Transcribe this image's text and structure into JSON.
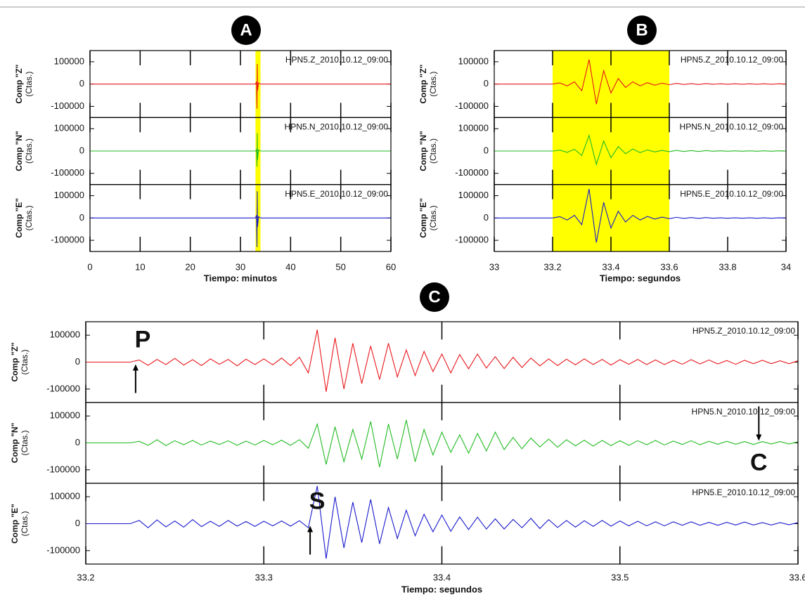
{
  "chart_data": [
    {
      "type": "line",
      "label": "A",
      "xlabel": "Tiempo: minutos",
      "xlim": [
        0,
        60
      ],
      "xticks": [
        0,
        10,
        20,
        30,
        40,
        50,
        60
      ],
      "highlight": [
        33,
        34
      ],
      "highlight_color": "#ffff00",
      "x": [
        0,
        10,
        20,
        30,
        33,
        33.2,
        33.3,
        33.35,
        33.4,
        33.6,
        34,
        40,
        50,
        60
      ],
      "panels": [
        {
          "ylabel": "Comp \"Z\"",
          "yunit": "(Ctas.)",
          "annotation": "HPN5.Z_2010.10.12_09:00",
          "ylim": [
            -150000,
            150000
          ],
          "yticks": [
            100000,
            0,
            -100000
          ],
          "series": [
            {
              "color": "#e8161b",
              "values": [
                0,
                0,
                0,
                0,
                0,
                10000,
                -110000,
                90000,
                -30000,
                5000,
                0,
                0,
                0,
                0
              ]
            }
          ]
        },
        {
          "ylabel": "Comp \"N\"",
          "yunit": "(Ctas.)",
          "annotation": "HPN5.N_2010.10.12_09:00",
          "ylim": [
            -150000,
            150000
          ],
          "yticks": [
            100000,
            0,
            -100000
          ],
          "series": [
            {
              "color": "#22bb22",
              "values": [
                0,
                0,
                0,
                0,
                0,
                6000,
                -70000,
                80000,
                -40000,
                5000,
                0,
                0,
                0,
                0
              ]
            }
          ]
        },
        {
          "ylabel": "Comp \"E\"",
          "yunit": "(Ctas.)",
          "annotation": "HPN5.E_2010.10.12_09:00",
          "ylim": [
            -150000,
            150000
          ],
          "yticks": [
            100000,
            0,
            -100000
          ],
          "series": [
            {
              "color": "#1a1acc",
              "values": [
                0,
                0,
                0,
                0,
                0,
                12000,
                -130000,
                120000,
                -40000,
                6000,
                0,
                0,
                0,
                0
              ]
            }
          ]
        }
      ]
    },
    {
      "type": "line",
      "label": "B",
      "xlabel": "Tiempo: segundos",
      "xlim": [
        33,
        34
      ],
      "xticks": [
        33,
        33.2,
        33.4,
        33.6,
        33.8,
        34
      ],
      "highlight": [
        33.2,
        33.6
      ],
      "highlight_color": "#ffff00",
      "x": [
        33,
        33.025,
        33.05,
        33.075,
        33.1,
        33.125,
        33.15,
        33.175,
        33.2,
        33.225,
        33.25,
        33.275,
        33.3,
        33.325,
        33.35,
        33.375,
        33.4,
        33.425,
        33.45,
        33.475,
        33.5,
        33.525,
        33.55,
        33.575,
        33.6,
        33.625,
        33.65,
        33.675,
        33.7,
        33.725,
        33.75,
        33.775,
        33.8,
        33.825,
        33.85,
        33.875,
        33.9,
        33.925,
        33.95,
        33.975,
        34
      ],
      "panels": [
        {
          "ylabel": "Comp \"Z\"",
          "yunit": "(Ctas.)",
          "annotation": "HPN5.Z_2010.10.12_09:00",
          "ylim": [
            -150000,
            150000
          ],
          "yticks": [
            100000,
            0,
            -100000
          ],
          "series": [
            {
              "color": "#e8161b",
              "values": [
                0,
                0,
                0,
                0,
                0,
                0,
                0,
                0,
                0,
                5000,
                -8000,
                10000,
                -30000,
                110000,
                -90000,
                60000,
                -40000,
                25000,
                -15000,
                10000,
                -8000,
                6000,
                -5000,
                4000,
                -3000,
                3000,
                -2000,
                2000,
                -2000,
                2000,
                -1000,
                1000,
                -1000,
                1000,
                -1000,
                1000,
                -1000,
                1000,
                -1000,
                1000,
                0
              ]
            }
          ]
        },
        {
          "ylabel": "Comp \"N\"",
          "yunit": "(Ctas.)",
          "annotation": "HPN5.N_2010.10.12_09:00",
          "ylim": [
            -150000,
            150000
          ],
          "yticks": [
            100000,
            0,
            -100000
          ],
          "series": [
            {
              "color": "#22bb22",
              "values": [
                0,
                0,
                0,
                0,
                0,
                0,
                0,
                0,
                0,
                4000,
                -6000,
                8000,
                -20000,
                70000,
                -60000,
                45000,
                -30000,
                20000,
                -12000,
                9000,
                -7000,
                5000,
                -4000,
                3000,
                -3000,
                3000,
                -2000,
                2000,
                -2000,
                2000,
                -1000,
                1000,
                -1000,
                1000,
                -1000,
                1000,
                -1000,
                1000,
                -1000,
                1000,
                0
              ]
            }
          ]
        },
        {
          "ylabel": "Comp \"E\"",
          "yunit": "(Ctas.)",
          "annotation": "HPN5.E_2010.10.12_09:00",
          "ylim": [
            -150000,
            150000
          ],
          "yticks": [
            100000,
            0,
            -100000
          ],
          "series": [
            {
              "color": "#1a1acc",
              "values": [
                0,
                0,
                0,
                0,
                0,
                0,
                0,
                0,
                0,
                6000,
                -9000,
                12000,
                -30000,
                130000,
                -110000,
                70000,
                -45000,
                30000,
                -18000,
                12000,
                -9000,
                7000,
                -5000,
                4000,
                -3000,
                3000,
                -2000,
                2000,
                -2000,
                2000,
                -1000,
                1000,
                -1000,
                1000,
                -1000,
                1000,
                -1000,
                1000,
                -1000,
                1000,
                0
              ]
            }
          ]
        }
      ]
    },
    {
      "type": "line",
      "label": "C",
      "xlabel": "Tiempo: segundos",
      "xlim": [
        33.2,
        33.6
      ],
      "xticks": [
        33.2,
        33.3,
        33.4,
        33.5,
        33.6
      ],
      "x": [
        33.2,
        33.205,
        33.21,
        33.215,
        33.22,
        33.225,
        33.23,
        33.235,
        33.24,
        33.245,
        33.25,
        33.255,
        33.26,
        33.265,
        33.27,
        33.275,
        33.28,
        33.285,
        33.29,
        33.295,
        33.3,
        33.305,
        33.31,
        33.315,
        33.32,
        33.325,
        33.33,
        33.335,
        33.34,
        33.345,
        33.35,
        33.355,
        33.36,
        33.365,
        33.37,
        33.375,
        33.38,
        33.385,
        33.39,
        33.395,
        33.4,
        33.405,
        33.41,
        33.415,
        33.42,
        33.425,
        33.43,
        33.435,
        33.44,
        33.445,
        33.45,
        33.455,
        33.46,
        33.465,
        33.47,
        33.475,
        33.48,
        33.485,
        33.49,
        33.495,
        33.5,
        33.505,
        33.51,
        33.515,
        33.52,
        33.525,
        33.53,
        33.535,
        33.54,
        33.545,
        33.55,
        33.555,
        33.56,
        33.565,
        33.57,
        33.575,
        33.58,
        33.585,
        33.59,
        33.595,
        33.6
      ],
      "panels": [
        {
          "ylabel": "Comp \"Z\"",
          "yunit": "(Ctas.)",
          "annotation": "HPN5.Z_2010.10.12_09:00",
          "ylim": [
            -150000,
            150000
          ],
          "yticks": [
            100000,
            0,
            -100000
          ],
          "markers": [
            {
              "text": "P",
              "x": 33.228,
              "direction": "up"
            }
          ],
          "series": [
            {
              "color": "#e8161b",
              "values": [
                0,
                0,
                0,
                0,
                0,
                0,
                8000,
                -12000,
                10000,
                -9000,
                14000,
                -11000,
                9000,
                -13000,
                12000,
                -8000,
                10000,
                -14000,
                11000,
                -9000,
                12000,
                -10000,
                15000,
                -13000,
                18000,
                -40000,
                120000,
                -110000,
                90000,
                -100000,
                70000,
                -80000,
                60000,
                -65000,
                70000,
                -55000,
                45000,
                -50000,
                40000,
                -35000,
                30000,
                -40000,
                28000,
                -25000,
                30000,
                -22000,
                20000,
                -24000,
                18000,
                -20000,
                15000,
                -14000,
                12000,
                -13000,
                11000,
                -10000,
                12000,
                -9000,
                10000,
                -11000,
                9000,
                -8000,
                10000,
                -9000,
                8000,
                -9000,
                7000,
                -8000,
                9000,
                -7000,
                8000,
                -7000,
                6000,
                -8000,
                7000,
                -6000,
                7000,
                -6000,
                5000,
                -6000,
                5000
              ]
            }
          ]
        },
        {
          "ylabel": "Comp \"N\"",
          "yunit": "(Ctas.)",
          "annotation": "HPN5.N_2010.10.12_09:00",
          "ylim": [
            -150000,
            150000
          ],
          "yticks": [
            100000,
            0,
            -100000
          ],
          "markers": [
            {
              "text": "C",
              "x": 33.578,
              "direction": "down"
            }
          ],
          "series": [
            {
              "color": "#22bb22",
              "values": [
                0,
                0,
                0,
                0,
                0,
                0,
                6000,
                -9000,
                12000,
                -10000,
                8000,
                -7000,
                9000,
                -8000,
                7000,
                -6000,
                8000,
                -9000,
                7000,
                -8000,
                9000,
                -7000,
                10000,
                -9000,
                12000,
                -20000,
                70000,
                -80000,
                60000,
                -70000,
                50000,
                -60000,
                80000,
                -90000,
                70000,
                -60000,
                85000,
                -70000,
                50000,
                -45000,
                40000,
                -35000,
                30000,
                -38000,
                35000,
                -30000,
                40000,
                -25000,
                20000,
                -22000,
                18000,
                -15000,
                14000,
                -16000,
                12000,
                -11000,
                10000,
                -12000,
                9000,
                -10000,
                8000,
                -9000,
                8000,
                -7000,
                9000,
                -8000,
                7000,
                -6000,
                8000,
                -7000,
                6000,
                -5000,
                6000,
                -5000,
                5000,
                -6000,
                5000,
                -4000,
                5000,
                -4000,
                4000
              ]
            }
          ]
        },
        {
          "ylabel": "Comp \"E\"",
          "yunit": "(Ctas.)",
          "annotation": "HPN5.E_2010.10.12_09:00",
          "ylim": [
            -150000,
            150000
          ],
          "yticks": [
            100000,
            0,
            -100000
          ],
          "markers": [
            {
              "text": "S",
              "x": 33.326,
              "direction": "up"
            }
          ],
          "series": [
            {
              "color": "#1a1acc",
              "values": [
                0,
                0,
                0,
                0,
                0,
                0,
                12000,
                -15000,
                14000,
                -12000,
                10000,
                -13000,
                15000,
                -11000,
                9000,
                -10000,
                12000,
                -9000,
                8000,
                -10000,
                9000,
                -8000,
                10000,
                -9000,
                11000,
                -15000,
                140000,
                -130000,
                100000,
                -90000,
                80000,
                -70000,
                90000,
                -75000,
                60000,
                -55000,
                50000,
                -45000,
                35000,
                -30000,
                32000,
                -28000,
                25000,
                -22000,
                24000,
                -20000,
                18000,
                -20000,
                16000,
                -15000,
                20000,
                -18000,
                15000,
                -14000,
                12000,
                -13000,
                11000,
                -10000,
                12000,
                -9000,
                10000,
                -8000,
                9000,
                -8000,
                7000,
                -8000,
                7000,
                -6000,
                7000,
                -6000,
                5000,
                -6000,
                5000,
                -5000,
                6000,
                -5000,
                4000,
                -5000,
                4000,
                -4000,
                4000
              ]
            }
          ]
        }
      ]
    }
  ]
}
